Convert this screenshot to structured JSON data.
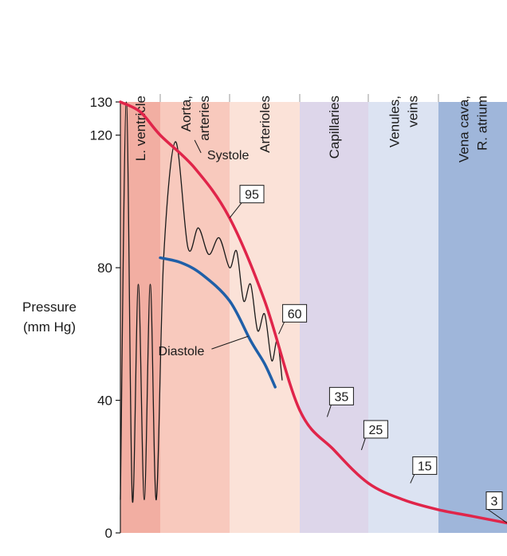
{
  "chart_data": {
    "type": "line",
    "title": "",
    "xlabel": "",
    "ylabel_lines": [
      "Pressure",
      "(mm Hg)"
    ],
    "ylim": [
      0,
      130
    ],
    "y_ticks": [
      0,
      40,
      80,
      120,
      130
    ],
    "grid": false,
    "segments": [
      {
        "label_lines": [
          "L. ventricle"
        ],
        "color": "#f2aea2"
      },
      {
        "label_lines": [
          "Aorta,",
          "arteries"
        ],
        "color": "#f8c9bd"
      },
      {
        "label_lines": [
          "Arterioles"
        ],
        "color": "#fbe2d8"
      },
      {
        "label_lines": [
          "Capillaries"
        ],
        "color": "#ddd6ea"
      },
      {
        "label_lines": [
          "Venules,",
          "veins"
        ],
        "color": "#dce3f2"
      },
      {
        "label_lines": [
          "Vena cava,",
          "R. atrium"
        ],
        "color": "#9fb6da"
      }
    ],
    "x_positions": [
      0,
      0.5,
      1,
      1.5,
      2,
      2.5,
      3,
      3.5,
      4,
      4.5,
      5,
      5.5,
      6
    ],
    "series": [
      {
        "name": "Systole",
        "color": "#e0254a",
        "x": [
          0,
          0.5,
          1,
          1.5,
          2,
          2.5,
          3,
          3.5,
          4,
          4.5,
          5,
          5.5,
          6
        ],
        "values": [
          130,
          127,
          120,
          110,
          95,
          70,
          37,
          25,
          15,
          10,
          7,
          5,
          3
        ]
      },
      {
        "name": "Diastole",
        "color": "#1f5fa8",
        "x": [
          1,
          1.3,
          1.6,
          2,
          2.3,
          2.5,
          2.65
        ],
        "values": [
          83,
          81.5,
          78,
          70,
          58,
          51,
          44
        ]
      }
    ],
    "pulse_wave": {
      "color": "#1a1a1a",
      "points": [
        [
          0,
          10
        ],
        [
          0.15,
          130
        ],
        [
          0.3,
          10
        ],
        [
          0.45,
          75
        ],
        [
          0.6,
          10
        ],
        [
          0.75,
          75
        ],
        [
          0.9,
          10
        ],
        [
          1.05,
          83
        ],
        [
          1.22,
          118
        ],
        [
          1.4,
          86
        ],
        [
          1.55,
          92
        ],
        [
          1.7,
          84
        ],
        [
          1.85,
          89
        ],
        [
          2.0,
          80
        ],
        [
          2.1,
          85
        ],
        [
          2.2,
          70
        ],
        [
          2.3,
          75
        ],
        [
          2.4,
          61
        ],
        [
          2.5,
          66
        ],
        [
          2.6,
          52
        ],
        [
          2.68,
          58
        ],
        [
          2.75,
          46
        ]
      ]
    },
    "annotations": [
      {
        "text": "Systole",
        "boxed": false,
        "x": 1.45,
        "y": 118.5
      },
      {
        "text": "95",
        "boxed": true,
        "x": 2.0,
        "y": 95
      },
      {
        "text": "60",
        "boxed": true,
        "x": 2.7,
        "y": 60
      },
      {
        "text": "Diastole",
        "boxed": false,
        "x": 1.35,
        "y": 55
      },
      {
        "text": "35",
        "boxed": true,
        "x": 3.4,
        "y": 35
      },
      {
        "text": "25",
        "boxed": true,
        "x": 3.9,
        "y": 25
      },
      {
        "text": "15",
        "boxed": true,
        "x": 4.6,
        "y": 15
      },
      {
        "text": "3",
        "boxed": true,
        "x": 6.0,
        "y": 3
      }
    ]
  }
}
